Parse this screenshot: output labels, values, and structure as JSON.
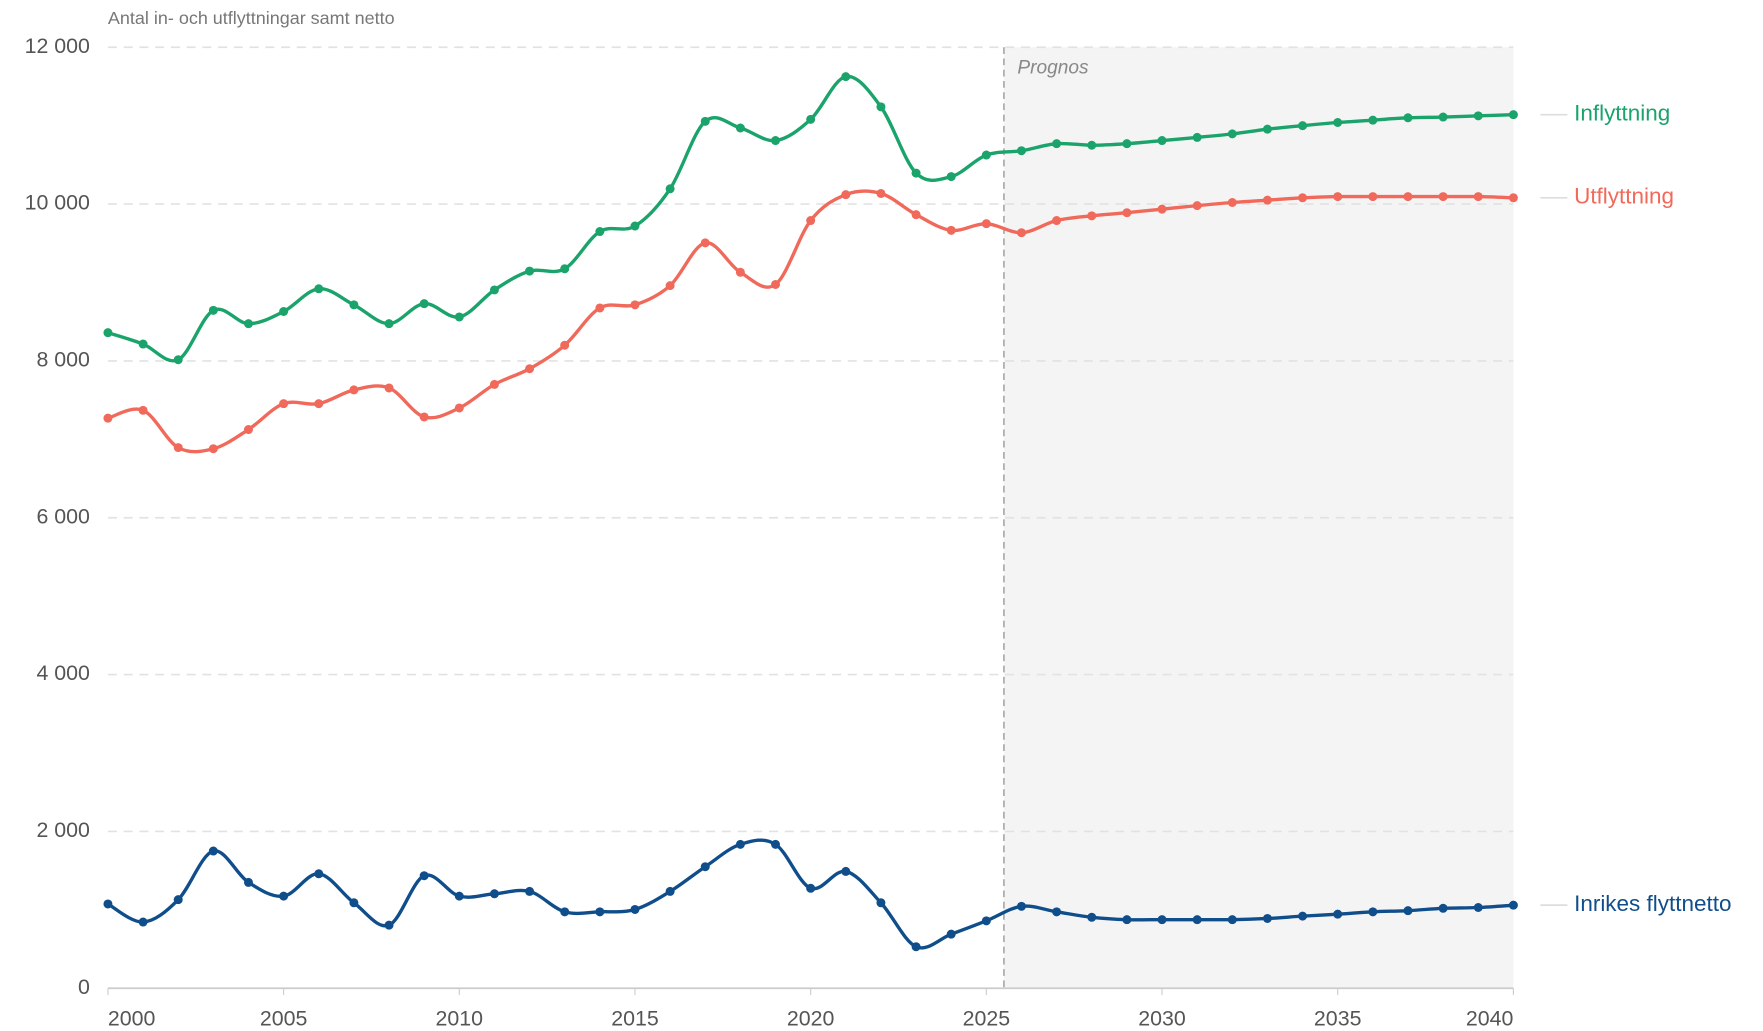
{
  "chart_data": {
    "type": "line",
    "y_axis_label": "Antal in- och utflyttningar samt netto",
    "x": [
      2000,
      2001,
      2002,
      2003,
      2004,
      2005,
      2006,
      2007,
      2008,
      2009,
      2010,
      2011,
      2012,
      2013,
      2014,
      2015,
      2016,
      2017,
      2018,
      2019,
      2020,
      2021,
      2022,
      2023,
      2024,
      2025,
      2026,
      2027,
      2028,
      2029,
      2030,
      2031,
      2032,
      2033,
      2034,
      2035,
      2036,
      2037,
      2038,
      2039,
      2040
    ],
    "series": [
      {
        "name": "Inflyttning",
        "color": "#1aa36a",
        "values": [
          8360,
          8215,
          8015,
          8645,
          8475,
          8630,
          8920,
          8715,
          8475,
          8730,
          8560,
          8905,
          9145,
          9175,
          9650,
          9720,
          10195,
          11055,
          10970,
          10810,
          11080,
          11625,
          11240,
          10395,
          10350,
          10625,
          10680,
          10770,
          10750,
          10770,
          10810,
          10850,
          10895,
          10955,
          11000,
          11040,
          11070,
          11100,
          11110,
          11125,
          11140
        ]
      },
      {
        "name": "Utflyttning",
        "color": "#f0695a",
        "values": [
          7270,
          7370,
          6895,
          6880,
          7125,
          7455,
          7455,
          7630,
          7655,
          7285,
          7400,
          7700,
          7900,
          8200,
          8675,
          8715,
          8960,
          9505,
          9130,
          8975,
          9790,
          10120,
          10135,
          9865,
          9665,
          9750,
          9635,
          9790,
          9850,
          9890,
          9935,
          9980,
          10020,
          10050,
          10080,
          10095,
          10095,
          10095,
          10095,
          10095,
          10080
        ]
      },
      {
        "name": "Inrikes flyttnetto",
        "color": "#104e8b",
        "values": [
          1075,
          845,
          1130,
          1750,
          1350,
          1175,
          1460,
          1090,
          805,
          1435,
          1175,
          1205,
          1235,
          975,
          975,
          1005,
          1235,
          1550,
          1835,
          1835,
          1275,
          1490,
          1090,
          530,
          690,
          860,
          1045,
          975,
          905,
          875,
          875,
          875,
          875,
          890,
          920,
          945,
          975,
          990,
          1020,
          1030,
          1060
        ]
      }
    ],
    "annotations": [
      {
        "text": "Prognos",
        "x": 2025.5
      }
    ],
    "xlim": [
      2000,
      2040
    ],
    "xticks": [
      2000,
      2005,
      2010,
      2015,
      2020,
      2025,
      2030,
      2035,
      2040
    ],
    "ylim": [
      0,
      12000
    ],
    "yticks": [
      0,
      {
        "value": 2000,
        "label": "2 000"
      },
      {
        "value": 4000,
        "label": "4 000"
      },
      {
        "value": 6000,
        "label": "6 000"
      },
      {
        "value": 8000,
        "label": "8 000"
      },
      {
        "value": 10000,
        "label": "10 000"
      },
      {
        "value": 12000,
        "label": "12 000"
      }
    ],
    "grid": true
  }
}
